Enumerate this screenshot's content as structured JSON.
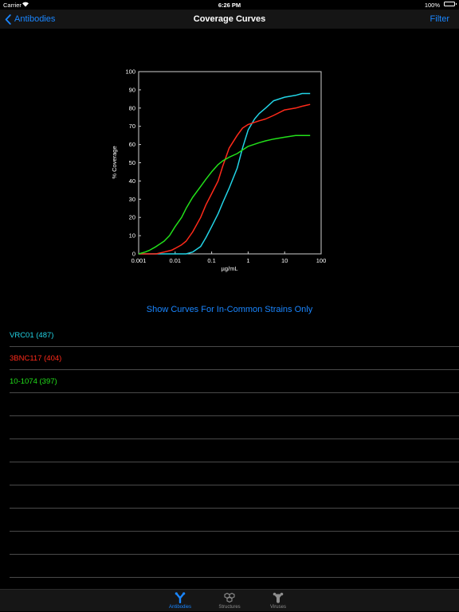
{
  "status_bar": {
    "carrier": "Carrier",
    "time": "6:26 PM",
    "battery": "100%"
  },
  "nav": {
    "back_label": "Antibodies",
    "title": "Coverage Curves",
    "filter_label": "Filter"
  },
  "in_common_button": "Show Curves For In-Common Strains Only",
  "antibodies": [
    {
      "label": "VRC01 (487)",
      "color": "#22d4e6"
    },
    {
      "label": "3BNC117 (404)",
      "color": "#ff2a1a"
    },
    {
      "label": "10-1074 (397)",
      "color": "#22e01a"
    }
  ],
  "empty_rows": 8,
  "tabs": [
    {
      "label": "Antibodies",
      "icon": "antibody-icon",
      "active": true
    },
    {
      "label": "Structures",
      "icon": "structure-icon",
      "active": false
    },
    {
      "label": "Viruses",
      "icon": "virus-icon",
      "active": false
    }
  ],
  "colors": {
    "accent": "#1a86ff",
    "background": "#000000",
    "separator": "#4a4a4a",
    "inactive_tab": "#8e8e8e"
  },
  "chart_data": {
    "type": "line",
    "xlabel": "µg/mL",
    "ylabel": "% Coverage",
    "x_scale": "log",
    "xlim": [
      0.001,
      100
    ],
    "ylim": [
      0,
      100
    ],
    "x_ticks": [
      "0.001",
      "0.01",
      "0.1",
      "1",
      "10",
      "100"
    ],
    "y_ticks": [
      "0",
      "10",
      "20",
      "30",
      "40",
      "50",
      "60",
      "70",
      "80",
      "90",
      "100"
    ],
    "grid": false,
    "legend": "none",
    "series": [
      {
        "color": "#22d4e6",
        "x": [
          0.001,
          0.005,
          0.02,
          0.03,
          0.05,
          0.07,
          0.1,
          0.15,
          0.2,
          0.3,
          0.5,
          0.7,
          1,
          1.5,
          2,
          3,
          5,
          10,
          20,
          30,
          50
        ],
        "y": [
          0,
          0,
          0,
          1,
          4,
          9,
          15,
          22,
          28,
          36,
          47,
          58,
          68,
          74,
          77,
          80,
          84,
          86,
          87,
          88,
          88
        ]
      },
      {
        "color": "#ff2a1a",
        "x": [
          0.001,
          0.003,
          0.005,
          0.008,
          0.01,
          0.015,
          0.02,
          0.03,
          0.05,
          0.07,
          0.1,
          0.15,
          0.2,
          0.3,
          0.5,
          0.7,
          1,
          2,
          3,
          5,
          10,
          20,
          30,
          50
        ],
        "y": [
          0,
          0,
          1,
          2,
          3,
          5,
          7,
          12,
          20,
          27,
          33,
          40,
          48,
          58,
          65,
          69,
          71,
          73,
          74,
          76,
          79,
          80,
          81,
          82
        ]
      },
      {
        "color": "#22e01a",
        "x": [
          0.001,
          0.0015,
          0.002,
          0.003,
          0.005,
          0.007,
          0.01,
          0.015,
          0.02,
          0.03,
          0.05,
          0.07,
          0.1,
          0.15,
          0.2,
          0.3,
          0.5,
          0.7,
          1,
          2,
          3,
          5,
          10,
          20,
          30,
          50
        ],
        "y": [
          0,
          1,
          2,
          4,
          7,
          10,
          15,
          20,
          25,
          31,
          37,
          41,
          45,
          49,
          51,
          53,
          55,
          57,
          59,
          61,
          62,
          63,
          64,
          65,
          65,
          65
        ]
      }
    ]
  }
}
